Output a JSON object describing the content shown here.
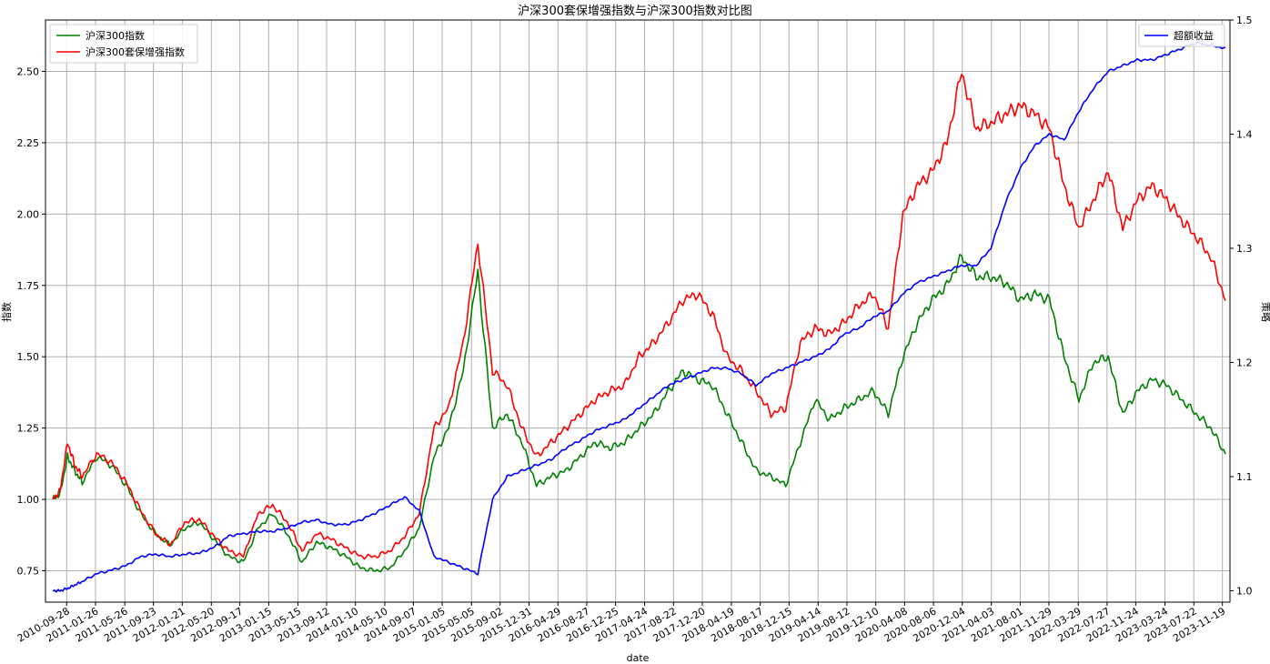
{
  "title": "沪深300套保增强指数与沪深300指数对比图",
  "chart_data": {
    "type": "line",
    "title": "沪深300套保增强指数与沪深300指数对比图",
    "xlabel": "date",
    "ylabel_left": "指数",
    "ylabel_right": "策略",
    "ylim_left": [
      0.64,
      2.68
    ],
    "ylim_right": [
      0.99,
      1.5
    ],
    "yticks_left": [
      "0.75",
      "1.00",
      "1.25",
      "1.50",
      "1.75",
      "2.00",
      "2.25",
      "2.50"
    ],
    "yticks_right": [
      "1.0",
      "1.1",
      "1.2",
      "1.3",
      "1.4",
      "1.5"
    ],
    "xticks": [
      "2010-09-28",
      "2011-01-26",
      "2011-05-26",
      "2011-09-23",
      "2012-01-21",
      "2012-05-20",
      "2012-09-17",
      "2013-01-15",
      "2013-05-15",
      "2013-09-12",
      "2014-01-10",
      "2014-05-10",
      "2014-09-07",
      "2015-01-05",
      "2015-05-05",
      "2015-09-02",
      "2015-12-31",
      "2016-04-29",
      "2016-08-27",
      "2016-12-25",
      "2017-04-24",
      "2017-08-22",
      "2017-12-20",
      "2018-04-19",
      "2018-08-17",
      "2018-12-15",
      "2019-04-14",
      "2019-08-12",
      "2019-12-10",
      "2020-04-08",
      "2020-08-06",
      "2020-12-04",
      "2021-04-03",
      "2021-08-01",
      "2021-11-29",
      "2022-03-29",
      "2022-07-27",
      "2022-11-24",
      "2023-03-24",
      "2023-07-22",
      "2023-11-19"
    ],
    "x": [
      "2010-08",
      "2010-09",
      "2010-10",
      "2010-11",
      "2010-12",
      "2011-02",
      "2011-04",
      "2011-06",
      "2011-08",
      "2011-10",
      "2011-12",
      "2012-02",
      "2012-04",
      "2012-06",
      "2012-08",
      "2012-10",
      "2012-12",
      "2013-02",
      "2013-04",
      "2013-06",
      "2013-08",
      "2013-10",
      "2013-12",
      "2014-02",
      "2014-04",
      "2014-06",
      "2014-08",
      "2014-10",
      "2014-12",
      "2015-02",
      "2015-04",
      "2015-06",
      "2015-08",
      "2015-10",
      "2015-12",
      "2016-02",
      "2016-04",
      "2016-06",
      "2016-08",
      "2016-10",
      "2016-12",
      "2017-02",
      "2017-04",
      "2017-06",
      "2017-08",
      "2017-10",
      "2017-12",
      "2018-02",
      "2018-04",
      "2018-06",
      "2018-08",
      "2018-10",
      "2018-12",
      "2019-02",
      "2019-04",
      "2019-06",
      "2019-08",
      "2019-10",
      "2019-12",
      "2020-02",
      "2020-04",
      "2020-06",
      "2020-08",
      "2020-10",
      "2020-12",
      "2021-02",
      "2021-04",
      "2021-06",
      "2021-08",
      "2021-10",
      "2021-12",
      "2022-02",
      "2022-04",
      "2022-06",
      "2022-08",
      "2022-10",
      "2022-12",
      "2023-02",
      "2023-04",
      "2023-06",
      "2023-08",
      "2023-10",
      "2023-12"
    ],
    "series": [
      {
        "name": "沪深300指数",
        "axis": "left",
        "color": "#008000",
        "values": [
          1.0,
          1.02,
          1.15,
          1.1,
          1.06,
          1.15,
          1.12,
          1.05,
          0.95,
          0.88,
          0.84,
          0.9,
          0.92,
          0.86,
          0.8,
          0.78,
          0.9,
          0.95,
          0.88,
          0.78,
          0.85,
          0.83,
          0.8,
          0.76,
          0.75,
          0.76,
          0.82,
          0.9,
          1.15,
          1.25,
          1.45,
          1.8,
          1.25,
          1.3,
          1.2,
          1.05,
          1.08,
          1.1,
          1.15,
          1.2,
          1.18,
          1.2,
          1.25,
          1.3,
          1.38,
          1.45,
          1.42,
          1.4,
          1.3,
          1.2,
          1.1,
          1.08,
          1.05,
          1.2,
          1.35,
          1.28,
          1.32,
          1.35,
          1.38,
          1.3,
          1.5,
          1.62,
          1.7,
          1.75,
          1.85,
          1.78,
          1.78,
          1.76,
          1.7,
          1.72,
          1.7,
          1.5,
          1.35,
          1.48,
          1.5,
          1.3,
          1.38,
          1.42,
          1.4,
          1.35,
          1.3,
          1.25,
          1.16
        ]
      },
      {
        "name": "沪深300套保增强指数",
        "axis": "left",
        "color": "#ff0000",
        "values": [
          1.0,
          1.03,
          1.2,
          1.12,
          1.08,
          1.16,
          1.13,
          1.06,
          0.96,
          0.88,
          0.84,
          0.92,
          0.93,
          0.87,
          0.82,
          0.8,
          0.95,
          0.98,
          0.92,
          0.82,
          0.88,
          0.86,
          0.83,
          0.8,
          0.8,
          0.82,
          0.87,
          0.95,
          1.25,
          1.32,
          1.55,
          1.9,
          1.45,
          1.4,
          1.25,
          1.15,
          1.2,
          1.25,
          1.3,
          1.35,
          1.38,
          1.4,
          1.5,
          1.55,
          1.62,
          1.7,
          1.72,
          1.65,
          1.5,
          1.45,
          1.38,
          1.3,
          1.32,
          1.55,
          1.6,
          1.58,
          1.62,
          1.68,
          1.72,
          1.6,
          2.0,
          2.1,
          2.15,
          2.25,
          2.5,
          2.3,
          2.32,
          2.35,
          2.38,
          2.35,
          2.3,
          2.1,
          1.95,
          2.05,
          2.15,
          1.95,
          2.05,
          2.1,
          2.05,
          1.98,
          1.92,
          1.85,
          1.7
        ]
      },
      {
        "name": "超额收益",
        "axis": "right",
        "color": "#0000ff",
        "values": [
          1.0,
          1.0,
          1.002,
          1.005,
          1.008,
          1.015,
          1.018,
          1.022,
          1.03,
          1.032,
          1.03,
          1.032,
          1.033,
          1.038,
          1.048,
          1.05,
          1.052,
          1.052,
          1.055,
          1.06,
          1.062,
          1.058,
          1.058,
          1.062,
          1.068,
          1.075,
          1.082,
          1.07,
          1.03,
          1.025,
          1.02,
          1.015,
          1.08,
          1.1,
          1.105,
          1.11,
          1.115,
          1.125,
          1.132,
          1.14,
          1.145,
          1.15,
          1.16,
          1.17,
          1.18,
          1.185,
          1.19,
          1.195,
          1.195,
          1.19,
          1.18,
          1.19,
          1.195,
          1.2,
          1.205,
          1.212,
          1.225,
          1.23,
          1.24,
          1.245,
          1.26,
          1.27,
          1.275,
          1.28,
          1.285,
          1.285,
          1.3,
          1.34,
          1.37,
          1.39,
          1.4,
          1.395,
          1.42,
          1.44,
          1.455,
          1.46,
          1.465,
          1.465,
          1.47,
          1.475,
          1.48,
          1.478,
          1.475
        ]
      }
    ],
    "legend_left": "top-left",
    "legend_right": "top-right",
    "grid": true
  }
}
